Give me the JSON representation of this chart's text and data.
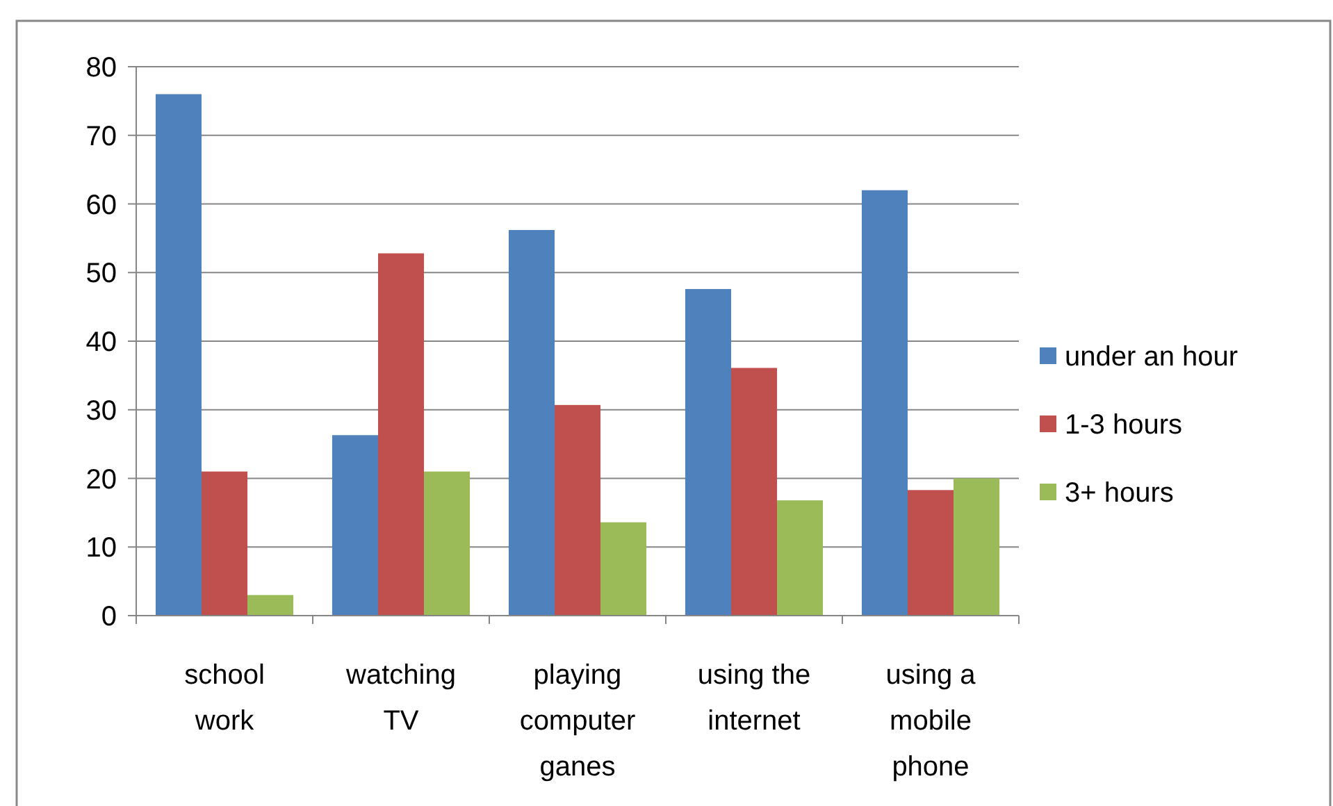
{
  "chart_data": {
    "type": "bar",
    "categories": [
      "school work",
      "watching TV",
      "playing computer ganes",
      "using the internet",
      "using a mobile phone"
    ],
    "series": [
      {
        "name": "under an hour",
        "color": "#4f81bd",
        "values": [
          76,
          26.3,
          56.2,
          47.6,
          62
        ]
      },
      {
        "name": "1-3 hours",
        "color": "#c0504d",
        "values": [
          21,
          52.8,
          30.7,
          36.1,
          18.3
        ]
      },
      {
        "name": "3+ hours",
        "color": "#9bbb59",
        "values": [
          3,
          21,
          13.6,
          16.8,
          20
        ]
      }
    ],
    "ylim": [
      0,
      80
    ],
    "yticks": [
      0,
      10,
      20,
      30,
      40,
      50,
      60,
      70,
      80
    ],
    "grid": "y",
    "legend": "right"
  }
}
